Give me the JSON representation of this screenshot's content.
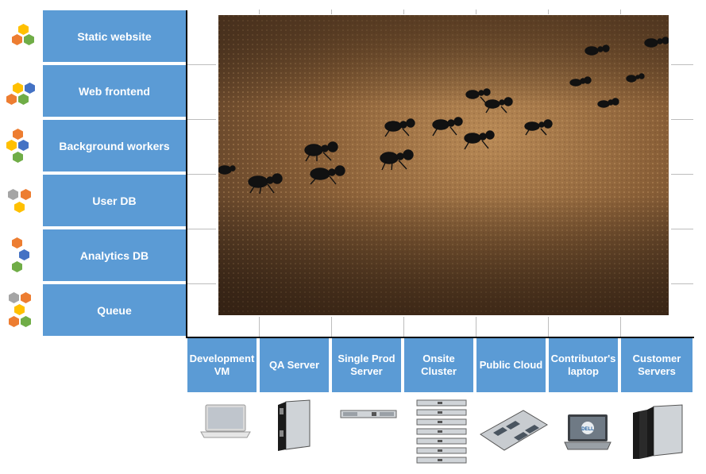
{
  "rows": [
    {
      "label": "Static website"
    },
    {
      "label": "Web frontend"
    },
    {
      "label": "Background workers"
    },
    {
      "label": "User DB"
    },
    {
      "label": "Analytics  DB"
    },
    {
      "label": "Queue"
    }
  ],
  "columns": [
    {
      "label": "Development VM",
      "icon": "laptop-icon"
    },
    {
      "label": "QA  Server",
      "icon": "blade-server-icon"
    },
    {
      "label": "Single Prod Server",
      "icon": "rack-server-icon"
    },
    {
      "label": "Onsite Cluster",
      "icon": "server-stack-icon"
    },
    {
      "label": "Public Cloud",
      "icon": "motherboard-icon"
    },
    {
      "label": "Contributor's laptop",
      "icon": "dell-laptop-icon"
    },
    {
      "label": "Customer Servers",
      "icon": "blade-servers-icon"
    }
  ],
  "colors": {
    "label_bg": "#5b9bd5",
    "hex_orange": "#ed7d31",
    "hex_yellow": "#ffc000",
    "hex_green": "#70ad47",
    "hex_blue": "#4472c4",
    "hex_gray": "#a5a5a5"
  },
  "photo": {
    "subject": "ants-on-sand-photo"
  },
  "laptop_brand": "DELL"
}
